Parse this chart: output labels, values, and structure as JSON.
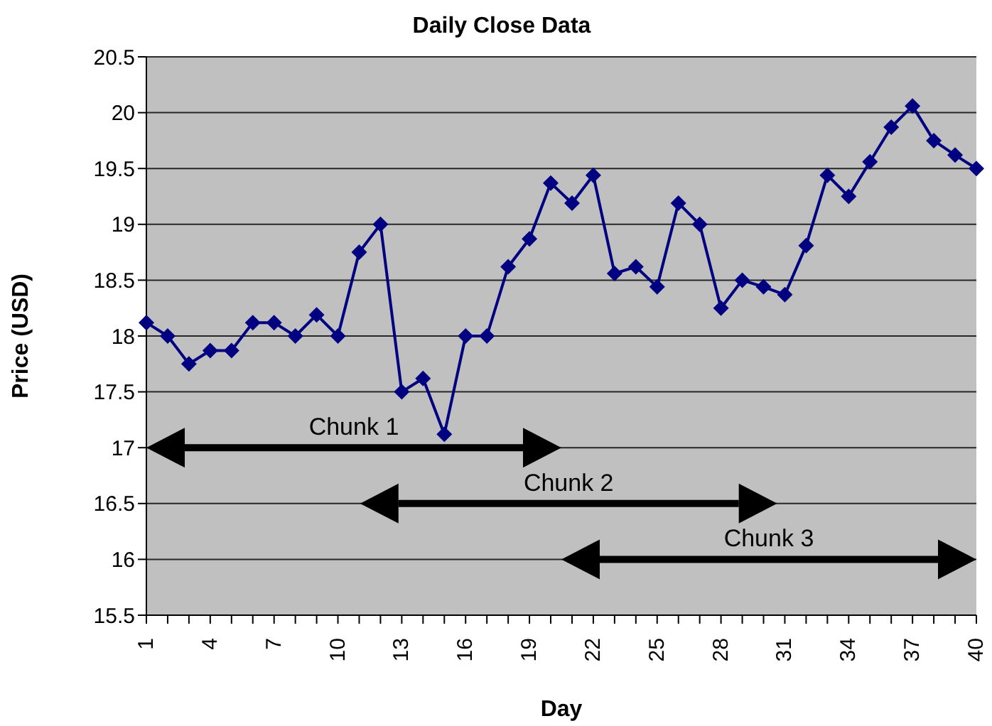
{
  "chart_data": {
    "type": "line",
    "title": "Daily Close Data",
    "xlabel": "Day",
    "ylabel": "Price (USD)",
    "categories": [
      "1",
      null,
      null,
      "4",
      null,
      null,
      "7",
      null,
      null,
      "10",
      null,
      null,
      "13",
      null,
      null,
      "16",
      null,
      null,
      "19",
      null,
      null,
      "22",
      null,
      null,
      "25",
      null,
      null,
      "28",
      null,
      null,
      "31",
      null,
      null,
      "34",
      null,
      null,
      "37",
      null,
      null,
      "40"
    ],
    "series": [
      {
        "color": "#000080",
        "values": [
          18.12,
          18.0,
          17.75,
          17.87,
          17.87,
          18.12,
          18.12,
          18.0,
          18.19,
          18.0,
          18.75,
          19.0,
          17.5,
          17.62,
          17.12,
          18.0,
          18.0,
          18.62,
          18.87,
          19.37,
          19.19,
          19.44,
          18.56,
          18.62,
          18.44,
          19.19,
          19.0,
          18.25,
          18.5,
          18.44,
          18.37,
          18.81,
          19.44,
          19.25,
          19.56,
          19.87,
          20.06,
          19.75,
          19.62,
          19.5
        ]
      }
    ],
    "ylim": [
      15.5,
      20.5
    ],
    "yticks": [
      15.5,
      16,
      16.5,
      17,
      17.5,
      18,
      18.5,
      19,
      19.5,
      20,
      20.5
    ],
    "grid": "y",
    "marker": "diamond",
    "annotations": [
      "Chunk 1",
      "Chunk 2",
      "Chunk 3"
    ]
  }
}
